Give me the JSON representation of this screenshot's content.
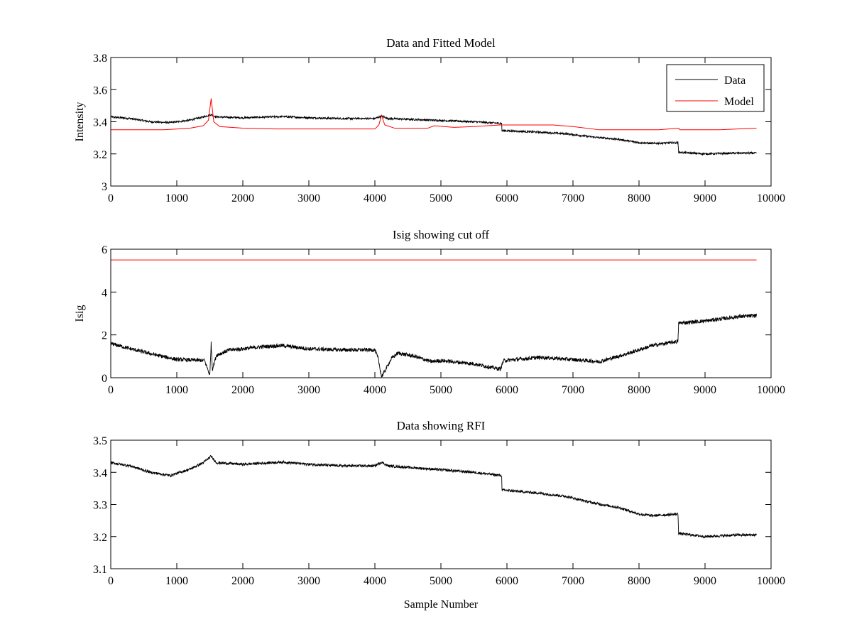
{
  "chart_data": [
    {
      "type": "line",
      "title": "Data and Fitted Model",
      "xlabel": "",
      "ylabel": "Intensity",
      "xlim": [
        0,
        10000
      ],
      "ylim": [
        3,
        3.8
      ],
      "xticks": [
        "0",
        "1000",
        "2000",
        "3000",
        "4000",
        "5000",
        "6000",
        "7000",
        "8000",
        "9000",
        "10000"
      ],
      "yticks": [
        "3",
        "3.2",
        "3.4",
        "3.6",
        "3.8"
      ],
      "legend": {
        "placement": "top-right",
        "entries": [
          "Data",
          "Model"
        ]
      },
      "grid": false,
      "series": [
        {
          "name": "Data",
          "color": "#000000",
          "noise": 0.006,
          "points": [
            [
              0,
              3.43
            ],
            [
              300,
              3.42
            ],
            [
              600,
              3.4
            ],
            [
              900,
              3.395
            ],
            [
              1200,
              3.41
            ],
            [
              1400,
              3.43
            ],
            [
              1520,
              3.445
            ],
            [
              1600,
              3.43
            ],
            [
              2000,
              3.425
            ],
            [
              2600,
              3.432
            ],
            [
              3000,
              3.425
            ],
            [
              3500,
              3.42
            ],
            [
              4000,
              3.42
            ],
            [
              4100,
              3.435
            ],
            [
              4200,
              3.42
            ],
            [
              5000,
              3.408
            ],
            [
              5500,
              3.4
            ],
            [
              5920,
              3.39
            ],
            [
              5925,
              3.345
            ],
            [
              6500,
              3.335
            ],
            [
              6900,
              3.325
            ],
            [
              7300,
              3.305
            ],
            [
              7700,
              3.29
            ],
            [
              8000,
              3.27
            ],
            [
              8200,
              3.265
            ],
            [
              8590,
              3.27
            ],
            [
              8600,
              3.21
            ],
            [
              9000,
              3.2
            ],
            [
              9500,
              3.205
            ],
            [
              9780,
              3.205
            ]
          ]
        },
        {
          "name": "Model",
          "color": "#ff0000",
          "noise": 0,
          "points": [
            [
              0,
              3.35
            ],
            [
              800,
              3.35
            ],
            [
              1200,
              3.36
            ],
            [
              1400,
              3.375
            ],
            [
              1480,
              3.41
            ],
            [
              1520,
              3.545
            ],
            [
              1560,
              3.4
            ],
            [
              1650,
              3.37
            ],
            [
              2000,
              3.36
            ],
            [
              2500,
              3.355
            ],
            [
              4000,
              3.355
            ],
            [
              4060,
              3.38
            ],
            [
              4100,
              3.44
            ],
            [
              4150,
              3.38
            ],
            [
              4300,
              3.36
            ],
            [
              4800,
              3.36
            ],
            [
              4900,
              3.375
            ],
            [
              5200,
              3.365
            ],
            [
              5500,
              3.37
            ],
            [
              5900,
              3.38
            ],
            [
              6700,
              3.38
            ],
            [
              7000,
              3.37
            ],
            [
              7400,
              3.35
            ],
            [
              8300,
              3.35
            ],
            [
              8600,
              3.36
            ],
            [
              8620,
              3.35
            ],
            [
              9200,
              3.35
            ],
            [
              9780,
              3.36
            ]
          ]
        }
      ]
    },
    {
      "type": "line",
      "title": "Isig showing cut off",
      "xlabel": "",
      "ylabel": "Isig",
      "xlim": [
        0,
        10000
      ],
      "ylim": [
        0,
        6
      ],
      "xticks": [
        "0",
        "1000",
        "2000",
        "3000",
        "4000",
        "5000",
        "6000",
        "7000",
        "8000",
        "9000",
        "10000"
      ],
      "yticks": [
        "0",
        "2",
        "4",
        "6"
      ],
      "grid": false,
      "series": [
        {
          "color": "#000000",
          "noise": 0.09,
          "points": [
            [
              0,
              1.6
            ],
            [
              300,
              1.35
            ],
            [
              700,
              1.05
            ],
            [
              1000,
              0.85
            ],
            [
              1300,
              0.82
            ],
            [
              1420,
              0.8
            ],
            [
              1480,
              0.3
            ],
            [
              1500,
              0.1
            ],
            [
              1520,
              1.6
            ],
            [
              1540,
              0.4
            ],
            [
              1600,
              1.05
            ],
            [
              1800,
              1.3
            ],
            [
              2000,
              1.35
            ],
            [
              2300,
              1.45
            ],
            [
              2600,
              1.5
            ],
            [
              3000,
              1.35
            ],
            [
              3500,
              1.3
            ],
            [
              4000,
              1.3
            ],
            [
              4050,
              0.9
            ],
            [
              4100,
              0.05
            ],
            [
              4150,
              0.3
            ],
            [
              4250,
              0.9
            ],
            [
              4350,
              1.15
            ],
            [
              4600,
              1.0
            ],
            [
              4850,
              0.75
            ],
            [
              5000,
              0.8
            ],
            [
              5500,
              0.65
            ],
            [
              5900,
              0.4
            ],
            [
              5950,
              0.8
            ],
            [
              6500,
              0.95
            ],
            [
              7000,
              0.85
            ],
            [
              7400,
              0.75
            ],
            [
              7800,
              1.1
            ],
            [
              8200,
              1.5
            ],
            [
              8590,
              1.7
            ],
            [
              8600,
              2.55
            ],
            [
              9000,
              2.65
            ],
            [
              9500,
              2.85
            ],
            [
              9780,
              2.9
            ]
          ]
        },
        {
          "color": "#ff0000",
          "noise": 0,
          "points": [
            [
              0,
              5.5
            ],
            [
              9780,
              5.5
            ]
          ]
        }
      ]
    },
    {
      "type": "line",
      "title": "Data showing RFI",
      "xlabel": "Sample Number",
      "ylabel": "",
      "xlim": [
        0,
        10000
      ],
      "ylim": [
        3.1,
        3.5
      ],
      "xticks": [
        "0",
        "1000",
        "2000",
        "3000",
        "4000",
        "5000",
        "6000",
        "7000",
        "8000",
        "9000",
        "10000"
      ],
      "yticks": [
        "3.1",
        "3.2",
        "3.3",
        "3.4",
        "3.5"
      ],
      "grid": false,
      "series": [
        {
          "color": "#000000",
          "noise": 0.004,
          "points": [
            [
              0,
              3.43
            ],
            [
              300,
              3.42
            ],
            [
              600,
              3.4
            ],
            [
              900,
              3.39
            ],
            [
              1200,
              3.41
            ],
            [
              1400,
              3.43
            ],
            [
              1520,
              3.45
            ],
            [
              1600,
              3.43
            ],
            [
              2000,
              3.425
            ],
            [
              2600,
              3.432
            ],
            [
              3000,
              3.425
            ],
            [
              3500,
              3.42
            ],
            [
              4000,
              3.42
            ],
            [
              4100,
              3.432
            ],
            [
              4200,
              3.42
            ],
            [
              5000,
              3.408
            ],
            [
              5500,
              3.4
            ],
            [
              5920,
              3.39
            ],
            [
              5925,
              3.345
            ],
            [
              6500,
              3.335
            ],
            [
              6900,
              3.325
            ],
            [
              7300,
              3.305
            ],
            [
              7700,
              3.29
            ],
            [
              8000,
              3.27
            ],
            [
              8200,
              3.265
            ],
            [
              8590,
              3.27
            ],
            [
              8600,
              3.21
            ],
            [
              9000,
              3.2
            ],
            [
              9500,
              3.205
            ],
            [
              9780,
              3.205
            ]
          ]
        }
      ]
    }
  ]
}
